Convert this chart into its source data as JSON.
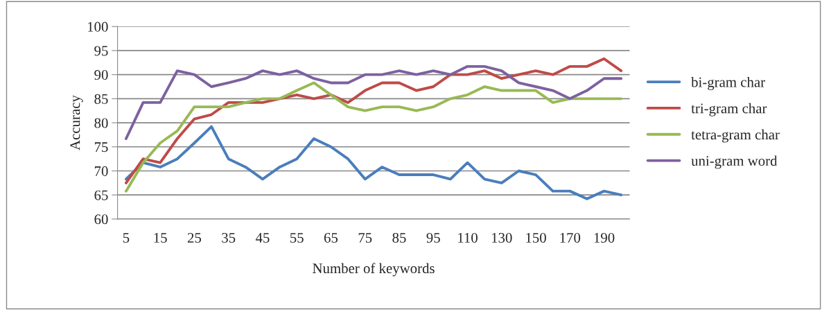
{
  "chart_data": {
    "type": "line",
    "xlabel": "Number of keywords",
    "ylabel": "Accuracy",
    "categories": [
      "5",
      null,
      "15",
      null,
      "25",
      null,
      "35",
      null,
      "45",
      null,
      "55",
      null,
      "65",
      null,
      "75",
      null,
      "85",
      null,
      "95",
      null,
      "110",
      null,
      "130",
      null,
      "150",
      null,
      "170",
      null,
      "190",
      null
    ],
    "series": [
      {
        "name": "bi-gram char",
        "color": "#4a7ebb",
        "values": [
          68.3,
          71.7,
          70.8,
          72.5,
          75.8,
          79.2,
          72.5,
          70.8,
          68.3,
          70.8,
          72.5,
          76.7,
          75,
          72.5,
          68.3,
          70.8,
          69.2,
          69.2,
          69.2,
          68.3,
          71.7,
          68.3,
          67.5,
          70,
          69.2,
          65.8,
          65.8,
          64.2,
          65.8,
          65
        ]
      },
      {
        "name": "tri-gram char",
        "color": "#be4b48",
        "values": [
          67.5,
          72.5,
          71.7,
          76.7,
          80.8,
          81.7,
          84.2,
          84.2,
          84.2,
          85,
          85.8,
          85,
          85.8,
          84.2,
          86.7,
          88.3,
          88.3,
          86.7,
          87.5,
          90,
          90,
          90.8,
          89.2,
          90,
          90.8,
          90,
          91.7,
          91.7,
          93.3,
          90.8
        ]
      },
      {
        "name": "tetra-gram char",
        "color": "#98b954",
        "values": [
          65.8,
          71.7,
          75.8,
          78.3,
          83.3,
          83.3,
          83.3,
          84.2,
          85,
          85,
          86.7,
          88.3,
          85.8,
          83.3,
          82.5,
          83.3,
          83.3,
          82.5,
          83.3,
          85,
          85.8,
          87.5,
          86.7,
          86.7,
          86.7,
          84.2,
          85,
          85,
          85,
          85
        ]
      },
      {
        "name": "uni-gram word",
        "color": "#7d60a0",
        "values": [
          76.7,
          84.2,
          84.2,
          90.8,
          90,
          87.5,
          88.3,
          89.2,
          90.8,
          90,
          90.8,
          89.2,
          88.3,
          88.3,
          90,
          90,
          90.8,
          90,
          90.8,
          90,
          91.7,
          91.7,
          90.8,
          88.3,
          87.5,
          86.7,
          85,
          86.7,
          89.2,
          89.2
        ]
      }
    ],
    "ylim": [
      60,
      100
    ],
    "yticks": [
      60,
      65,
      70,
      75,
      80,
      85,
      90,
      95,
      100
    ],
    "grid": "y",
    "legend": "right",
    "marker": "none",
    "line_style": "solid"
  }
}
